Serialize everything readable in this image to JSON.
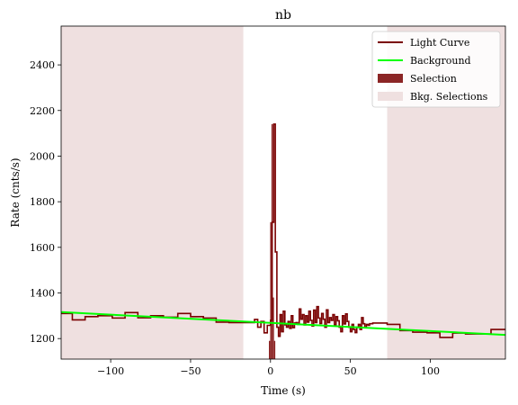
{
  "chart_data": {
    "type": "line",
    "title": "nb",
    "xlabel": "Time (s)",
    "ylabel": "Rate (cnts/s)",
    "xlim": [
      -131,
      147
    ],
    "ylim": [
      1110,
      2570
    ],
    "xticks": [
      -100,
      -50,
      0,
      50,
      100
    ],
    "yticks": [
      1200,
      1400,
      1600,
      1800,
      2000,
      2200,
      2400
    ],
    "grid": false,
    "legend_position": "top-right",
    "colors": {
      "light_curve": "#7a0000",
      "background": "#00ff00",
      "selection": "#8b2525",
      "bkg_selection": "#efe0e0"
    },
    "legend": [
      {
        "key": "light_curve",
        "label": "Light Curve",
        "kind": "line"
      },
      {
        "key": "background",
        "label": "Background",
        "kind": "line"
      },
      {
        "key": "selection",
        "label": "Selection",
        "kind": "patch"
      },
      {
        "key": "bkg_selection",
        "label": "Bkg. Selections",
        "kind": "patch"
      }
    ],
    "bkg_selections": [
      [
        -131,
        -17
      ],
      [
        73,
        147
      ]
    ],
    "selection": {
      "range": [
        -1,
        3
      ],
      "values": [
        1190,
        1710,
        2140,
        1380,
        1190
      ]
    },
    "background_fit": {
      "x": [
        -131,
        147
      ],
      "y": [
        1316,
        1216
      ]
    },
    "light_curve": {
      "x": [
        -131,
        -124,
        -116,
        -108,
        -99,
        -91,
        -83,
        -75,
        -67,
        -58,
        -50,
        -42,
        -34,
        -26,
        -17,
        -10,
        -8,
        -6,
        -4,
        -2,
        0,
        1,
        2,
        3,
        4,
        5,
        6,
        7,
        8,
        9,
        10,
        11,
        12,
        13,
        14,
        15,
        16,
        17,
        18,
        19,
        20,
        21,
        22,
        23,
        24,
        25,
        26,
        27,
        28,
        29,
        30,
        31,
        32,
        33,
        34,
        35,
        36,
        37,
        38,
        39,
        40,
        41,
        42,
        43,
        44,
        45,
        46,
        47,
        48,
        49,
        50,
        51,
        52,
        53,
        54,
        55,
        56,
        57,
        58,
        59,
        60,
        61,
        62,
        64,
        73,
        81,
        89,
        98,
        106,
        114,
        122,
        130,
        138,
        147
      ],
      "y": [
        1310,
        1282,
        1296,
        1300,
        1290,
        1314,
        1291,
        1300,
        1294,
        1310,
        1296,
        1290,
        1272,
        1270,
        1270,
        1284,
        1250,
        1275,
        1225,
        1258,
        1280,
        1710,
        2140,
        1580,
        1250,
        1210,
        1305,
        1230,
        1320,
        1260,
        1250,
        1275,
        1245,
        1300,
        1248,
        1268,
        1270,
        1262,
        1330,
        1285,
        1305,
        1260,
        1300,
        1272,
        1320,
        1280,
        1255,
        1325,
        1270,
        1340,
        1290,
        1266,
        1310,
        1285,
        1250,
        1326,
        1270,
        1292,
        1280,
        1305,
        1260,
        1296,
        1278,
        1250,
        1230,
        1300,
        1264,
        1308,
        1275,
        1250,
        1230,
        1262,
        1240,
        1226,
        1250,
        1262,
        1240,
        1292,
        1265,
        1248,
        1262,
        1258,
        1265,
        1268,
        1262,
        1235,
        1228,
        1225,
        1205,
        1224,
        1220,
        1220,
        1240,
        1240
      ]
    }
  }
}
